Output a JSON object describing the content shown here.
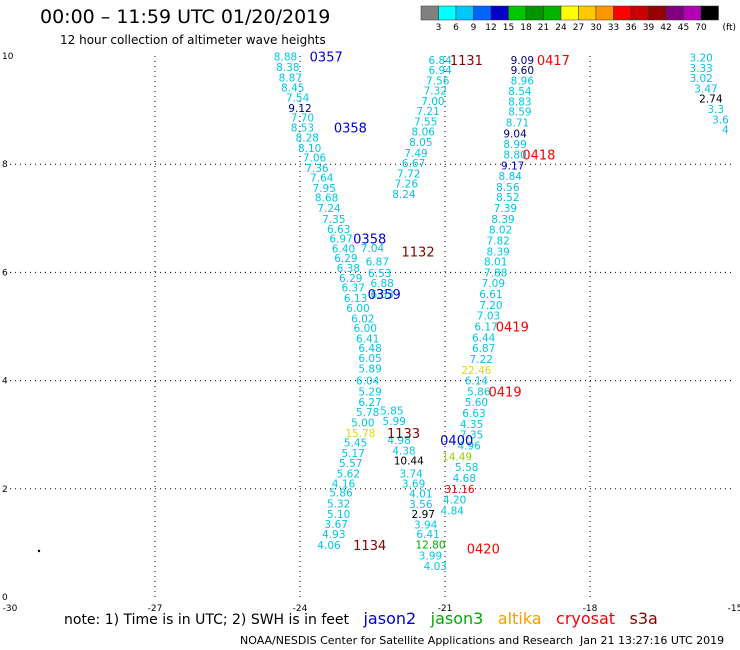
{
  "title": "00:00 – 11:59 UTC 01/20/2019",
  "subtitle": "12 hour collection of altimeter wave heights",
  "colorbar": {
    "ticks": [
      "3",
      "6",
      "9",
      "12",
      "15",
      "18",
      "21",
      "24",
      "27",
      "30",
      "33",
      "36",
      "39",
      "42",
      "45",
      "70"
    ],
    "unit": "(ft)",
    "colors": [
      "#808080",
      "#00ffff",
      "#00c8ff",
      "#0064ff",
      "#0000c8",
      "#00c800",
      "#009600",
      "#00b400",
      "#ffff00",
      "#ffc800",
      "#ff9600",
      "#ff0000",
      "#c80000",
      "#960000",
      "#800080",
      "#b400b4",
      "#000000"
    ]
  },
  "note": "note: 1) Time is in UTC; 2) SWH is in feet",
  "satellites": [
    {
      "name": "jason2",
      "color": "#0000dd"
    },
    {
      "name": "jason3",
      "color": "#00aa00"
    },
    {
      "name": "altika",
      "color": "#ff9900"
    },
    {
      "name": "cryosat",
      "color": "#ff0000"
    },
    {
      "name": "s3a",
      "color": "#8b0000"
    }
  ],
  "footer_left": "NOAA/NESDIS Center for Satellite Applications and Research",
  "footer_right": "Jan 21 13:27:16 UTC 2019",
  "chart_data": {
    "type": "scatter",
    "xlim": [
      -30,
      -15
    ],
    "ylim": [
      0,
      10
    ],
    "xticks": [
      "-30",
      "-27",
      "-24",
      "-21",
      "-18",
      "-15"
    ],
    "yticks": [
      "0",
      "2",
      "4",
      "6",
      "8",
      "10"
    ],
    "grid": true,
    "points": [
      {
        "x": -24.3,
        "y": 9.99,
        "t": "8.88",
        "c": "#00c8e6"
      },
      {
        "x": -24.25,
        "y": 9.8,
        "t": "8.38",
        "c": "#00c8e6"
      },
      {
        "x": -24.2,
        "y": 9.6,
        "t": "8.87",
        "c": "#00c8e6"
      },
      {
        "x": -24.15,
        "y": 9.42,
        "t": "8.45",
        "c": "#00c8e6"
      },
      {
        "x": -24.05,
        "y": 9.23,
        "t": "7.54",
        "c": "#00c8e6"
      },
      {
        "x": -24.0,
        "y": 9.04,
        "t": "9.12",
        "c": "#000080"
      },
      {
        "x": -23.95,
        "y": 8.86,
        "t": "7.70",
        "c": "#00c8e6"
      },
      {
        "x": -23.95,
        "y": 8.68,
        "t": "8.53",
        "c": "#00c8e6"
      },
      {
        "x": -23.85,
        "y": 8.49,
        "t": "8.28",
        "c": "#00c8e6"
      },
      {
        "x": -23.8,
        "y": 8.3,
        "t": "8.10",
        "c": "#00c8e6"
      },
      {
        "x": -23.7,
        "y": 8.12,
        "t": "7.06",
        "c": "#00c8e6"
      },
      {
        "x": -23.65,
        "y": 7.93,
        "t": "7.36",
        "c": "#00c8e6"
      },
      {
        "x": -23.55,
        "y": 7.75,
        "t": "7.64",
        "c": "#00c8e6"
      },
      {
        "x": -23.5,
        "y": 7.56,
        "t": "7.95",
        "c": "#00c8e6"
      },
      {
        "x": -23.45,
        "y": 7.38,
        "t": "8.68",
        "c": "#00c8e6"
      },
      {
        "x": -23.4,
        "y": 7.19,
        "t": "7.24",
        "c": "#00c8e6"
      },
      {
        "x": -23.3,
        "y": 6.99,
        "t": "7.35",
        "c": "#00c8e6"
      },
      {
        "x": -23.2,
        "y": 6.8,
        "t": "6.63",
        "c": "#00c8e6"
      },
      {
        "x": -23.15,
        "y": 6.63,
        "t": "6.97",
        "c": "#00c8e6"
      },
      {
        "x": -23.1,
        "y": 6.44,
        "t": "6.40",
        "c": "#00c8e6"
      },
      {
        "x": -23.05,
        "y": 6.27,
        "t": "6.29",
        "c": "#00c8e6"
      },
      {
        "x": -23.0,
        "y": 6.08,
        "t": "6.38",
        "c": "#00c8e6"
      },
      {
        "x": -22.95,
        "y": 5.9,
        "t": "6.29",
        "c": "#00c8e6"
      },
      {
        "x": -22.9,
        "y": 5.72,
        "t": "6.37",
        "c": "#00c8e6"
      },
      {
        "x": -22.85,
        "y": 5.53,
        "t": "6.13",
        "c": "#00c8e6"
      },
      {
        "x": -22.8,
        "y": 5.34,
        "t": "6.00",
        "c": "#00c8e6"
      },
      {
        "x": -22.7,
        "y": 5.15,
        "t": "6.02",
        "c": "#00c8e6"
      },
      {
        "x": -22.65,
        "y": 4.97,
        "t": "6.00",
        "c": "#00c8e6"
      },
      {
        "x": -22.6,
        "y": 4.78,
        "t": "6.41",
        "c": "#00c8e6"
      },
      {
        "x": -22.55,
        "y": 4.6,
        "t": "6.48",
        "c": "#00c8e6"
      },
      {
        "x": -22.55,
        "y": 4.42,
        "t": "6.05",
        "c": "#00c8e6"
      },
      {
        "x": -22.55,
        "y": 4.22,
        "t": "5.89",
        "c": "#00c8e6"
      },
      {
        "x": -22.6,
        "y": 4.0,
        "t": "6.04",
        "c": "#00c8e6"
      },
      {
        "x": -22.55,
        "y": 3.8,
        "t": "5.29",
        "c": "#00c8e6"
      },
      {
        "x": -22.55,
        "y": 3.6,
        "t": "6.27",
        "c": "#00c8e6"
      },
      {
        "x": -22.6,
        "y": 3.42,
        "t": "5.78",
        "c": "#00c8e6"
      },
      {
        "x": -22.7,
        "y": 3.23,
        "t": "5.00",
        "c": "#00c8e6"
      },
      {
        "x": -22.75,
        "y": 3.03,
        "t": "15.78",
        "c": "#dddd00"
      },
      {
        "x": -22.85,
        "y": 2.86,
        "t": "5.45",
        "c": "#00c8e6"
      },
      {
        "x": -22.9,
        "y": 2.66,
        "t": "5.17",
        "c": "#00c8e6"
      },
      {
        "x": -22.95,
        "y": 2.48,
        "t": "5.57",
        "c": "#00c8e6"
      },
      {
        "x": -23.0,
        "y": 2.28,
        "t": "5.62",
        "c": "#00c8e6"
      },
      {
        "x": -23.1,
        "y": 2.1,
        "t": "4.16",
        "c": "#00c8e6"
      },
      {
        "x": -23.15,
        "y": 1.93,
        "t": "5.86",
        "c": "#00c8e6"
      },
      {
        "x": -23.2,
        "y": 1.73,
        "t": "5.32",
        "c": "#00c8e6"
      },
      {
        "x": -23.2,
        "y": 1.53,
        "t": "5.10",
        "c": "#00c8e6"
      },
      {
        "x": -23.25,
        "y": 1.35,
        "t": "3.67",
        "c": "#00c8e6"
      },
      {
        "x": -23.3,
        "y": 1.16,
        "t": "4.93",
        "c": "#00c8e6"
      },
      {
        "x": -23.4,
        "y": 0.96,
        "t": "4.06",
        "c": "#00c8e6"
      },
      {
        "x": -22.5,
        "y": 6.45,
        "t": "7.04",
        "c": "#00c8e6"
      },
      {
        "x": -22.4,
        "y": 6.2,
        "t": "6.87",
        "c": "#00c8e6"
      },
      {
        "x": -22.35,
        "y": 5.99,
        "t": "6.53",
        "c": "#00c8e6"
      },
      {
        "x": -22.3,
        "y": 5.8,
        "t": "6.88",
        "c": "#00c8e6"
      },
      {
        "x": -22.3,
        "y": 5.6,
        "t": "6.53",
        "c": "#00c8e6"
      },
      {
        "x": -22.1,
        "y": 3.45,
        "t": "5.85",
        "c": "#00c8e6"
      },
      {
        "x": -22.05,
        "y": 3.25,
        "t": "5.99",
        "c": "#00c8e6"
      },
      {
        "x": -21.95,
        "y": 2.9,
        "t": "4.98",
        "c": "#00c8e6"
      },
      {
        "x": -21.85,
        "y": 2.71,
        "t": "4.38",
        "c": "#00c8e6"
      },
      {
        "x": -21.75,
        "y": 2.52,
        "t": "10.44",
        "c": "#000000"
      },
      {
        "x": -21.7,
        "y": 2.28,
        "t": "3.74",
        "c": "#00c8e6"
      },
      {
        "x": -21.65,
        "y": 2.1,
        "t": "3.69",
        "c": "#00c8e6"
      },
      {
        "x": -21.5,
        "y": 1.91,
        "t": "4.01",
        "c": "#00c8e6"
      },
      {
        "x": -21.5,
        "y": 1.72,
        "t": "3.56",
        "c": "#00c8e6"
      },
      {
        "x": -21.45,
        "y": 1.53,
        "t": "2.97",
        "c": "#000000"
      },
      {
        "x": -21.4,
        "y": 1.34,
        "t": "3.94",
        "c": "#00c8e6"
      },
      {
        "x": -21.35,
        "y": 1.16,
        "t": "6.41",
        "c": "#00c8e6"
      },
      {
        "x": -21.3,
        "y": 0.97,
        "t": "12.80",
        "c": "#00aa00"
      },
      {
        "x": -21.3,
        "y": 0.77,
        "t": "3.99",
        "c": "#00c8e6"
      },
      {
        "x": -21.2,
        "y": 0.57,
        "t": "4.03",
        "c": "#00c8e6"
      },
      {
        "x": -21.1,
        "y": 9.93,
        "t": "6.84",
        "c": "#00c8e6"
      },
      {
        "x": -21.1,
        "y": 9.74,
        "t": "6.94",
        "c": "#00c8e6"
      },
      {
        "x": -21.15,
        "y": 9.55,
        "t": "7.56",
        "c": "#00c8e6"
      },
      {
        "x": -21.2,
        "y": 9.36,
        "t": "7.32",
        "c": "#00c8e6"
      },
      {
        "x": -21.25,
        "y": 9.17,
        "t": "7.00",
        "c": "#00c8e6"
      },
      {
        "x": -21.35,
        "y": 8.98,
        "t": "7.21",
        "c": "#00c8e6"
      },
      {
        "x": -21.4,
        "y": 8.79,
        "t": "7.55",
        "c": "#00c8e6"
      },
      {
        "x": -21.45,
        "y": 8.6,
        "t": "8.06",
        "c": "#00c8e6"
      },
      {
        "x": -21.5,
        "y": 8.41,
        "t": "8.05",
        "c": "#00c8e6"
      },
      {
        "x": -21.6,
        "y": 8.21,
        "t": "7.49",
        "c": "#00c8e6"
      },
      {
        "x": -21.65,
        "y": 8.02,
        "t": "6.67",
        "c": "#00c8e6"
      },
      {
        "x": -21.75,
        "y": 7.83,
        "t": "7.72",
        "c": "#00c8e6"
      },
      {
        "x": -21.8,
        "y": 7.64,
        "t": "7.26",
        "c": "#00c8e6"
      },
      {
        "x": -21.85,
        "y": 7.45,
        "t": "8.24",
        "c": "#00c8e6"
      },
      {
        "x": -19.4,
        "y": 9.93,
        "t": "9.09",
        "c": "#000080"
      },
      {
        "x": -19.4,
        "y": 9.74,
        "t": "9.60",
        "c": "#000080"
      },
      {
        "x": -19.4,
        "y": 9.55,
        "t": "8.96",
        "c": "#00c8e6"
      },
      {
        "x": -19.45,
        "y": 9.35,
        "t": "8.54",
        "c": "#00c8e6"
      },
      {
        "x": -19.45,
        "y": 9.16,
        "t": "8.83",
        "c": "#00c8e6"
      },
      {
        "x": -19.45,
        "y": 8.97,
        "t": "8.59",
        "c": "#00c8e6"
      },
      {
        "x": -19.5,
        "y": 8.77,
        "t": "8.71",
        "c": "#00c8e6"
      },
      {
        "x": -19.55,
        "y": 8.57,
        "t": "9.04",
        "c": "#000080"
      },
      {
        "x": -19.55,
        "y": 8.37,
        "t": "8.99",
        "c": "#00c8e6"
      },
      {
        "x": -19.55,
        "y": 8.18,
        "t": "8.80",
        "c": "#00c8e6"
      },
      {
        "x": -19.6,
        "y": 7.98,
        "t": "9.17",
        "c": "#0000dd"
      },
      {
        "x": -19.65,
        "y": 7.78,
        "t": "8.84",
        "c": "#00c8e6"
      },
      {
        "x": -19.7,
        "y": 7.58,
        "t": "8.56",
        "c": "#00c8e6"
      },
      {
        "x": -19.7,
        "y": 7.39,
        "t": "8.52",
        "c": "#00c8e6"
      },
      {
        "x": -19.75,
        "y": 7.19,
        "t": "7.39",
        "c": "#00c8e6"
      },
      {
        "x": -19.8,
        "y": 6.99,
        "t": "8.39",
        "c": "#00c8e6"
      },
      {
        "x": -19.85,
        "y": 6.79,
        "t": "8.02",
        "c": "#00c8e6"
      },
      {
        "x": -19.9,
        "y": 6.59,
        "t": "7.82",
        "c": "#00c8e6"
      },
      {
        "x": -19.9,
        "y": 6.39,
        "t": "8.39",
        "c": "#00c8e6"
      },
      {
        "x": -19.95,
        "y": 6.2,
        "t": "8.01",
        "c": "#00c8e6"
      },
      {
        "x": -19.95,
        "y": 6.0,
        "t": "7.88",
        "c": "#00c8e6"
      },
      {
        "x": -20.0,
        "y": 5.8,
        "t": "7.09",
        "c": "#00c8e6"
      },
      {
        "x": -20.05,
        "y": 5.6,
        "t": "6.61",
        "c": "#00c8e6"
      },
      {
        "x": -20.05,
        "y": 5.4,
        "t": "7.20",
        "c": "#00c8e6"
      },
      {
        "x": -20.1,
        "y": 5.2,
        "t": "7.03",
        "c": "#00c8e6"
      },
      {
        "x": -20.15,
        "y": 5.0,
        "t": "6.17",
        "c": "#00c8e6"
      },
      {
        "x": -20.2,
        "y": 4.8,
        "t": "6.44",
        "c": "#00c8e6"
      },
      {
        "x": -20.2,
        "y": 4.6,
        "t": "6.87",
        "c": "#00c8e6"
      },
      {
        "x": -20.25,
        "y": 4.4,
        "t": "7.22",
        "c": "#00c8e6"
      },
      {
        "x": -20.35,
        "y": 4.2,
        "t": "22.46",
        "c": "#dddd00"
      },
      {
        "x": -20.35,
        "y": 4.0,
        "t": "6.14",
        "c": "#00c8e6"
      },
      {
        "x": -20.3,
        "y": 3.8,
        "t": "5.86",
        "c": "#00c8e6"
      },
      {
        "x": -20.35,
        "y": 3.6,
        "t": "5.60",
        "c": "#00c8e6"
      },
      {
        "x": -20.4,
        "y": 3.4,
        "t": "6.63",
        "c": "#00c8e6"
      },
      {
        "x": -20.45,
        "y": 3.2,
        "t": "4.35",
        "c": "#00c8e6"
      },
      {
        "x": -20.45,
        "y": 3.0,
        "t": "7.35",
        "c": "#00c8e6"
      },
      {
        "x": -20.5,
        "y": 2.8,
        "t": "4.96",
        "c": "#00c8e6"
      },
      {
        "x": -20.75,
        "y": 2.6,
        "t": "14.49",
        "c": "#99cc00"
      },
      {
        "x": -20.55,
        "y": 2.4,
        "t": "5.58",
        "c": "#00c8e6"
      },
      {
        "x": -20.6,
        "y": 2.2,
        "t": "4.68",
        "c": "#00c8e6"
      },
      {
        "x": -20.7,
        "y": 2.0,
        "t": "31.16",
        "c": "#ff0000"
      },
      {
        "x": -20.8,
        "y": 1.8,
        "t": "4.20",
        "c": "#00c8e6"
      },
      {
        "x": -20.85,
        "y": 1.6,
        "t": "4.84",
        "c": "#00c8e6"
      },
      {
        "x": -15.7,
        "y": 9.97,
        "t": "3.20",
        "c": "#00c8e6"
      },
      {
        "x": -15.7,
        "y": 9.78,
        "t": "3.33",
        "c": "#00c8e6"
      },
      {
        "x": -15.7,
        "y": 9.59,
        "t": "3.02",
        "c": "#00c8e6"
      },
      {
        "x": -15.6,
        "y": 9.4,
        "t": "3.47",
        "c": "#00c8e6"
      },
      {
        "x": -15.5,
        "y": 9.21,
        "t": "2.74",
        "c": "#000000"
      },
      {
        "x": -15.4,
        "y": 9.02,
        "t": "3.3",
        "c": "#00c8e6"
      },
      {
        "x": -15.3,
        "y": 8.83,
        "t": "3.6",
        "c": "#00c8e6"
      },
      {
        "x": -15.2,
        "y": 8.64,
        "t": "4",
        "c": "#00c8e6"
      }
    ],
    "passes": [
      {
        "label": "0357",
        "x": -23.8,
        "y": 9.99,
        "c": "#0000dd"
      },
      {
        "label": "1131",
        "x": -20.9,
        "y": 9.93,
        "c": "#8b0000"
      },
      {
        "label": "0417",
        "x": -19.1,
        "y": 9.93,
        "c": "#ff0000"
      },
      {
        "label": "0358",
        "x": -23.3,
        "y": 8.68,
        "c": "#0000dd"
      },
      {
        "label": "0418",
        "x": -19.4,
        "y": 8.18,
        "c": "#ff0000"
      },
      {
        "label": "0358",
        "x": -22.9,
        "y": 6.63,
        "c": "#0000dd"
      },
      {
        "label": "1132",
        "x": -21.9,
        "y": 6.39,
        "c": "#8b0000"
      },
      {
        "label": "0359",
        "x": -22.6,
        "y": 5.6,
        "c": "#0000dd"
      },
      {
        "label": "0419",
        "x": -19.95,
        "y": 5.0,
        "c": "#ff0000"
      },
      {
        "label": "0419",
        "x": -20.1,
        "y": 3.8,
        "c": "#ff0000"
      },
      {
        "label": "1133",
        "x": -22.2,
        "y": 3.03,
        "c": "#8b0000"
      },
      {
        "label": "0400",
        "x": -21.1,
        "y": 2.9,
        "c": "#0000dd"
      },
      {
        "label": "0420",
        "x": -20.55,
        "y": 0.9,
        "c": "#ff0000"
      },
      {
        "label": "1134",
        "x": -22.9,
        "y": 0.96,
        "c": "#8b0000"
      }
    ]
  }
}
